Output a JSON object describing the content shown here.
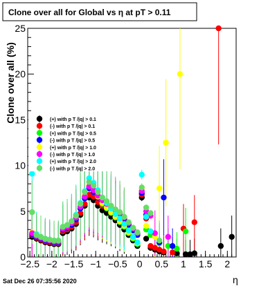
{
  "chart_data": {
    "type": "scatter",
    "title": "Clone  over all for Global vs   η at pT > 0.11",
    "xlabel": "η",
    "ylabel": "Clone  over all (%)",
    "xlim": [
      -2.55,
      2.2
    ],
    "ylim": [
      0,
      25
    ],
    "x_ticks": [
      -2.5,
      -2,
      -1.5,
      -1,
      -0.5,
      0,
      0.5,
      1,
      1.5,
      2
    ],
    "x_tick_labels": [
      "−2.5",
      "−2",
      "−1.5",
      "−1",
      "−0.5",
      "0",
      "0.5",
      "1",
      "1.5",
      "2"
    ],
    "y_ticks": [
      0,
      5,
      10,
      15,
      20,
      25
    ],
    "y_tick_labels": [
      "0",
      "5",
      "10",
      "15",
      "20",
      "25"
    ],
    "grid": false,
    "legend_position": "center-left",
    "series": [
      {
        "name": "(+) with p T /|q| > 0.1",
        "color": "#000000",
        "points": [
          [
            -2.45,
            2.2
          ],
          [
            -2.35,
            2.0
          ],
          [
            -2.25,
            1.8
          ],
          [
            -2.15,
            1.6
          ],
          [
            -2.05,
            1.5
          ],
          [
            -1.95,
            1.4
          ],
          [
            -1.85,
            1.4
          ],
          [
            -1.75,
            2.6
          ],
          [
            -1.65,
            2.8
          ],
          [
            -1.55,
            3.1
          ],
          [
            -1.45,
            3.6
          ],
          [
            -1.35,
            4.6
          ],
          [
            -1.25,
            5.6
          ],
          [
            -1.15,
            6.5
          ],
          [
            -1.05,
            6.2
          ],
          [
            -0.95,
            5.6
          ],
          [
            -0.85,
            5.1
          ],
          [
            -0.75,
            4.8
          ],
          [
            -0.65,
            4.4
          ],
          [
            -0.55,
            4.0
          ],
          [
            -0.45,
            3.5
          ],
          [
            -0.35,
            3.0
          ],
          [
            -0.25,
            2.4
          ],
          [
            -0.15,
            1.8
          ],
          [
            -0.05,
            1.2
          ],
          [
            0.05,
            6.5
          ],
          [
            0.15,
            2.0
          ],
          [
            0.25,
            1.0
          ],
          [
            0.35,
            0.8
          ],
          [
            0.45,
            0.6
          ],
          [
            0.55,
            0.5
          ],
          [
            0.85,
            0.4
          ],
          [
            1.05,
            0.3
          ],
          [
            1.15,
            0.3
          ],
          [
            1.25,
            0.4
          ],
          [
            1.85,
            1.2
          ],
          [
            2.1,
            2.2
          ]
        ]
      },
      {
        "name": "(-) with p T /|q| > 0.1",
        "color": "#ff0000",
        "points": [
          [
            -2.45,
            2.4
          ],
          [
            -2.35,
            2.1
          ],
          [
            -2.25,
            1.9
          ],
          [
            -2.15,
            1.7
          ],
          [
            -2.05,
            1.6
          ],
          [
            -1.95,
            1.5
          ],
          [
            -1.85,
            1.5
          ],
          [
            -1.75,
            2.8
          ],
          [
            -1.65,
            3.0
          ],
          [
            -1.55,
            3.3
          ],
          [
            -1.45,
            3.8
          ],
          [
            -1.35,
            4.8
          ],
          [
            -1.25,
            5.8
          ],
          [
            -1.15,
            6.8
          ],
          [
            -1.05,
            6.6
          ],
          [
            -0.95,
            6.0
          ],
          [
            -0.85,
            5.6
          ],
          [
            -0.75,
            5.3
          ],
          [
            -0.65,
            5.0
          ],
          [
            -0.55,
            4.8
          ],
          [
            -0.45,
            4.6
          ],
          [
            -0.35,
            4.2
          ],
          [
            -0.25,
            3.6
          ],
          [
            -0.15,
            3.0
          ],
          [
            -0.05,
            2.6
          ],
          [
            0.05,
            6.8
          ],
          [
            0.15,
            4.2
          ],
          [
            0.25,
            1.2
          ],
          [
            0.35,
            1.0
          ],
          [
            0.45,
            0.8
          ],
          [
            0.55,
            0.6
          ],
          [
            0.75,
            0.5
          ],
          [
            1.0,
            3.1
          ],
          [
            1.25,
            3.8
          ],
          [
            1.8,
            25.0
          ]
        ]
      },
      {
        "name": "(+) with p T /|q| > 0.5",
        "color": "#00ff00",
        "points": [
          [
            -2.45,
            2.6
          ],
          [
            -2.35,
            2.2
          ],
          [
            -2.25,
            2.0
          ],
          [
            -2.15,
            1.8
          ],
          [
            -2.05,
            1.7
          ],
          [
            -1.95,
            1.6
          ],
          [
            -1.85,
            1.6
          ],
          [
            -1.75,
            3.0
          ],
          [
            -1.65,
            3.2
          ],
          [
            -1.55,
            3.5
          ],
          [
            -1.45,
            4.1
          ],
          [
            -1.35,
            5.3
          ],
          [
            -1.25,
            6.5
          ],
          [
            -1.15,
            7.6
          ],
          [
            -1.05,
            7.2
          ],
          [
            -0.95,
            6.5
          ],
          [
            -0.85,
            5.8
          ],
          [
            -0.75,
            5.3
          ],
          [
            -0.65,
            4.8
          ],
          [
            -0.55,
            4.3
          ],
          [
            -0.45,
            3.8
          ],
          [
            -0.35,
            3.3
          ],
          [
            -0.25,
            2.6
          ],
          [
            -0.15,
            2.0
          ],
          [
            -0.05,
            1.4
          ],
          [
            0.05,
            7.2
          ],
          [
            0.15,
            3.0
          ],
          [
            0.25,
            2.4
          ],
          [
            0.45,
            1.5
          ],
          [
            0.65,
            1.2
          ],
          [
            0.85,
            0.9
          ],
          [
            1.05,
            2.8
          ]
        ]
      },
      {
        "name": "(-) with p T /|q| > 0.5",
        "color": "#0000ff",
        "points": [
          [
            -2.45,
            2.5
          ],
          [
            -2.35,
            2.2
          ],
          [
            -2.25,
            2.0
          ],
          [
            -2.15,
            1.8
          ],
          [
            -2.05,
            1.7
          ],
          [
            -1.95,
            1.6
          ],
          [
            -1.85,
            1.6
          ],
          [
            -1.75,
            3.0
          ],
          [
            -1.65,
            3.2
          ],
          [
            -1.55,
            3.5
          ],
          [
            -1.45,
            4.1
          ],
          [
            -1.35,
            5.3
          ],
          [
            -1.25,
            6.4
          ],
          [
            -1.15,
            7.5
          ],
          [
            -1.05,
            7.1
          ],
          [
            -0.95,
            6.5
          ],
          [
            -0.85,
            6.0
          ],
          [
            -0.75,
            5.6
          ],
          [
            -0.65,
            5.2
          ],
          [
            -0.55,
            4.9
          ],
          [
            -0.45,
            4.6
          ],
          [
            -0.35,
            4.1
          ],
          [
            -0.25,
            3.5
          ],
          [
            -0.15,
            2.9
          ],
          [
            -0.05,
            2.4
          ],
          [
            0.05,
            7.0
          ],
          [
            0.15,
            4.6
          ],
          [
            0.25,
            2.8
          ],
          [
            0.45,
            1.6
          ],
          [
            0.55,
            6.5
          ],
          [
            0.75,
            1.2
          ]
        ]
      },
      {
        "name": "(+) with p T /|q| > 1.0",
        "color": "#ffff00",
        "points": [
          [
            -2.45,
            2.7
          ],
          [
            -2.35,
            2.3
          ],
          [
            -2.25,
            2.1
          ],
          [
            -2.15,
            1.9
          ],
          [
            -2.05,
            1.8
          ],
          [
            -1.95,
            1.7
          ],
          [
            -1.85,
            1.7
          ],
          [
            -1.75,
            3.1
          ],
          [
            -1.65,
            3.3
          ],
          [
            -1.55,
            3.7
          ],
          [
            -1.45,
            4.3
          ],
          [
            -1.35,
            5.5
          ],
          [
            -1.25,
            6.7
          ],
          [
            -1.15,
            7.8
          ],
          [
            -1.05,
            7.4
          ],
          [
            -0.95,
            6.6
          ],
          [
            -0.85,
            5.9
          ],
          [
            -0.75,
            5.4
          ],
          [
            -0.65,
            4.9
          ],
          [
            -0.55,
            4.4
          ],
          [
            -0.45,
            3.9
          ],
          [
            -0.35,
            3.4
          ],
          [
            -0.25,
            2.7
          ],
          [
            -0.15,
            2.1
          ],
          [
            -0.05,
            1.5
          ],
          [
            0.05,
            7.4
          ],
          [
            0.15,
            3.4
          ],
          [
            0.35,
            2.2
          ],
          [
            0.45,
            7.5
          ],
          [
            0.6,
            12.5
          ],
          [
            0.92,
            20.0
          ]
        ]
      },
      {
        "name": "(-) with p T /|q| > 1.0",
        "color": "#ff00ff",
        "points": [
          [
            -2.45,
            2.6
          ],
          [
            -2.35,
            2.3
          ],
          [
            -2.25,
            2.1
          ],
          [
            -2.15,
            1.9
          ],
          [
            -2.05,
            1.8
          ],
          [
            -1.95,
            1.7
          ],
          [
            -1.85,
            1.7
          ],
          [
            -1.75,
            3.1
          ],
          [
            -1.65,
            3.3
          ],
          [
            -1.55,
            3.7
          ],
          [
            -1.45,
            4.3
          ],
          [
            -1.35,
            5.5
          ],
          [
            -1.25,
            6.6
          ],
          [
            -1.15,
            7.7
          ],
          [
            -1.05,
            7.3
          ],
          [
            -0.95,
            6.7
          ],
          [
            -0.85,
            6.2
          ],
          [
            -0.75,
            5.8
          ],
          [
            -0.65,
            5.4
          ],
          [
            -0.55,
            5.1
          ],
          [
            -0.45,
            4.8
          ],
          [
            -0.35,
            4.3
          ],
          [
            -0.25,
            3.7
          ],
          [
            -0.15,
            3.1
          ],
          [
            -0.05,
            2.6
          ],
          [
            0.05,
            7.2
          ],
          [
            0.15,
            5.0
          ],
          [
            0.25,
            4.5
          ],
          [
            0.35,
            2.6
          ],
          [
            0.65,
            2.2
          ]
        ]
      },
      {
        "name": "(+) with p T /|q| > 2.0",
        "color": "#00ffff",
        "points": [
          [
            -2.45,
            9.1
          ],
          [
            -2.35,
            2.5
          ],
          [
            -2.25,
            2.2
          ],
          [
            -2.15,
            2.0
          ],
          [
            -2.05,
            1.9
          ],
          [
            -1.95,
            1.8
          ],
          [
            -1.85,
            1.8
          ],
          [
            -1.75,
            3.3
          ],
          [
            -1.65,
            3.5
          ],
          [
            -1.55,
            3.9
          ],
          [
            -1.45,
            4.6
          ],
          [
            -1.35,
            5.9
          ],
          [
            -1.25,
            7.2
          ],
          [
            -1.15,
            8.6
          ],
          [
            -1.05,
            8.1
          ],
          [
            -0.95,
            7.3
          ],
          [
            -0.85,
            6.5
          ],
          [
            -0.75,
            5.9
          ],
          [
            -0.65,
            5.3
          ],
          [
            -0.55,
            4.7
          ],
          [
            -0.45,
            4.2
          ],
          [
            -0.35,
            3.6
          ],
          [
            -0.25,
            2.9
          ],
          [
            -0.15,
            2.2
          ],
          [
            -0.05,
            1.6
          ],
          [
            0.05,
            9.0
          ],
          [
            0.15,
            4.4
          ],
          [
            0.25,
            2.8
          ]
        ]
      },
      {
        "name": "(-) with p T /|q| > 2.0",
        "color": "#66dd66",
        "points": [
          [
            -2.45,
            4.9
          ],
          [
            -2.35,
            2.4
          ],
          [
            -2.25,
            2.2
          ],
          [
            -2.15,
            2.0
          ],
          [
            -2.05,
            1.9
          ],
          [
            -1.95,
            1.8
          ],
          [
            -1.85,
            1.8
          ],
          [
            -1.75,
            3.3
          ],
          [
            -1.65,
            3.5
          ],
          [
            -1.55,
            3.9
          ],
          [
            -1.45,
            4.5
          ],
          [
            -1.35,
            5.8
          ],
          [
            -1.25,
            7.1
          ],
          [
            -1.15,
            8.2
          ],
          [
            -1.05,
            7.8
          ],
          [
            -0.95,
            7.1
          ],
          [
            -0.85,
            6.5
          ],
          [
            -0.75,
            6.1
          ],
          [
            -0.65,
            5.6
          ],
          [
            -0.55,
            5.2
          ],
          [
            -0.45,
            4.9
          ],
          [
            -0.35,
            4.4
          ],
          [
            -0.25,
            3.8
          ],
          [
            -0.15,
            3.2
          ],
          [
            -0.05,
            2.7
          ],
          [
            0.05,
            7.6
          ],
          [
            0.15,
            5.4
          ],
          [
            0.25,
            4.8
          ],
          [
            0.45,
            1.8
          ]
        ]
      }
    ]
  },
  "footer": {
    "timestamp": "Sat Dec 26 07:35:56 2020"
  }
}
